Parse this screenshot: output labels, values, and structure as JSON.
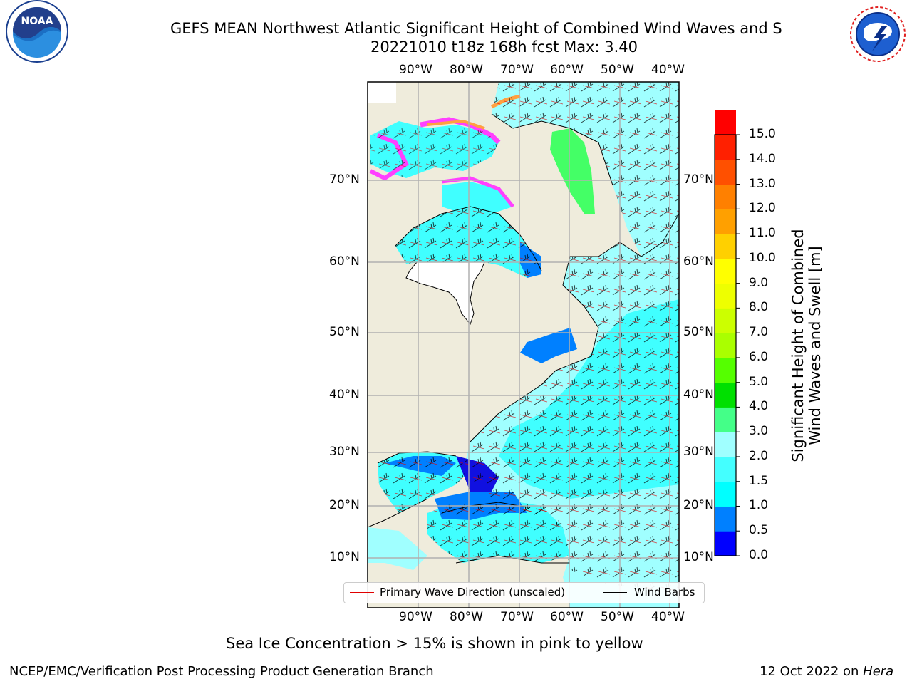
{
  "title": {
    "line1": "GEFS MEAN Northwest Atlantic Significant Height of Combined Wind Waves and S",
    "line2": "20221010 t18z 168h fcst   Max: 3.40"
  },
  "logos": {
    "left": {
      "text": "NOAA",
      "ring_text": "NATIONAL OCEANIC AND ATMOSPHERIC ADMINISTRATION · U.S. DEPARTMENT OF COMMERCE",
      "icon": "noaa-logo"
    },
    "right": {
      "ring_text": "NATIONAL WEATHER SERVICE",
      "icon": "nws-logo"
    }
  },
  "map": {
    "lon_labels": [
      "90°W",
      "80°W",
      "70°W",
      "60°W",
      "50°W",
      "40°W"
    ],
    "lat_labels": [
      "70°N",
      "60°N",
      "50°N",
      "40°N",
      "30°N",
      "20°N",
      "10°N"
    ],
    "colors": {
      "land": "#efecdc",
      "ocean_cyan": "#40ffff",
      "ocean_light": "#a0ffff",
      "ocean_blue": "#0080ff",
      "ocean_deep": "#1010e0",
      "ice_pink": "#ff40ff",
      "ice_orange": "#ffa040",
      "green": "#44ff66"
    }
  },
  "legend": {
    "primary": "Primary Wave Direction (unscaled)",
    "barbs": "Wind Barbs"
  },
  "colorbar": {
    "label_line1": "Significant Height of Combined",
    "label_line2": "Wind Waves and Swell [m]",
    "ticks": [
      "15.0",
      "14.0",
      "13.0",
      "12.0",
      "11.0",
      "10.0",
      "9.0",
      "8.0",
      "7.0",
      "6.0",
      "5.0",
      "4.0",
      "3.0",
      "2.0",
      "1.5",
      "1.0",
      "0.5",
      "0.0"
    ],
    "colors": [
      "#0000ff",
      "#0080ff",
      "#00ffff",
      "#44ffff",
      "#a0ffff",
      "#44ff88",
      "#00e000",
      "#55ff00",
      "#aaff00",
      "#ccff00",
      "#eeff00",
      "#ffff00",
      "#ffd000",
      "#ffa000",
      "#ff8000",
      "#ff5000",
      "#ff2000",
      "#ff0000"
    ]
  },
  "note": "Sea Ice Concentration > 15% is shown in pink to yellow",
  "footer": {
    "left": "NCEP/EMC/Verification Post Processing Product Generation Branch",
    "right_date": "12 Oct 2022 on ",
    "right_host": "Hera"
  }
}
